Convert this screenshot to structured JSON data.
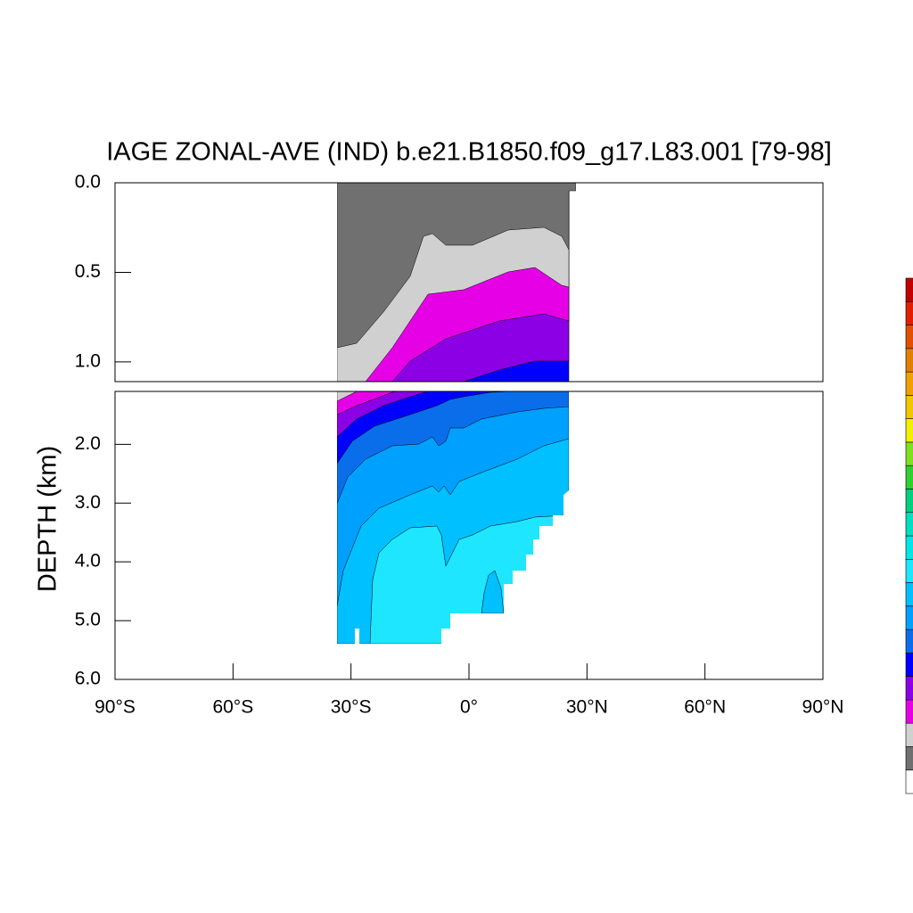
{
  "chart_data": {
    "type": "contour",
    "title": "IAGE ZONAL-AVE (IND) b.e21.B1850.f09_g17.L83.001 [79-98]",
    "ylabel": "DEPTH (km)",
    "xlim": [
      -90,
      90
    ],
    "xticks": [
      {
        "value": -90,
        "label": "90°S"
      },
      {
        "value": -60,
        "label": "60°S"
      },
      {
        "value": -30,
        "label": "30°S"
      },
      {
        "value": 0,
        "label": "0°"
      },
      {
        "value": 30,
        "label": "30°N"
      },
      {
        "value": 60,
        "label": "60°N"
      },
      {
        "value": 90,
        "label": "90°N"
      }
    ],
    "panels": [
      {
        "ylim": [
          0,
          1.11
        ],
        "yticks": [
          {
            "value": 0,
            "label": "0.0"
          },
          0.5,
          {
            "value": 1,
            "label": "1.0"
          }
        ]
      },
      {
        "ylim": [
          1.1,
          6
        ],
        "yticks": [
          {
            "value": 2,
            "label": "2.0"
          },
          {
            "value": 3,
            "label": "3.0"
          },
          {
            "value": 4,
            "label": "4.0"
          },
          {
            "value": 5,
            "label": "5.0"
          },
          {
            "value": 6,
            "label": "6.0"
          }
        ]
      }
    ],
    "colorbar": {
      "colors": [
        "#ffffff",
        "#707070",
        "#d0d0d0",
        "#e600e6",
        "#8c00e6",
        "#0000ff",
        "#0a6eeb",
        "#00a0ff",
        "#00c0ff",
        "#1ee6ff",
        "#00e6e6",
        "#00e0c0",
        "#00d080",
        "#30d030",
        "#80e020",
        "#f0f000",
        "#f0c800",
        "#f0a000",
        "#e08000",
        "#e05000",
        "#e02000",
        "#c00000"
      ]
    }
  }
}
